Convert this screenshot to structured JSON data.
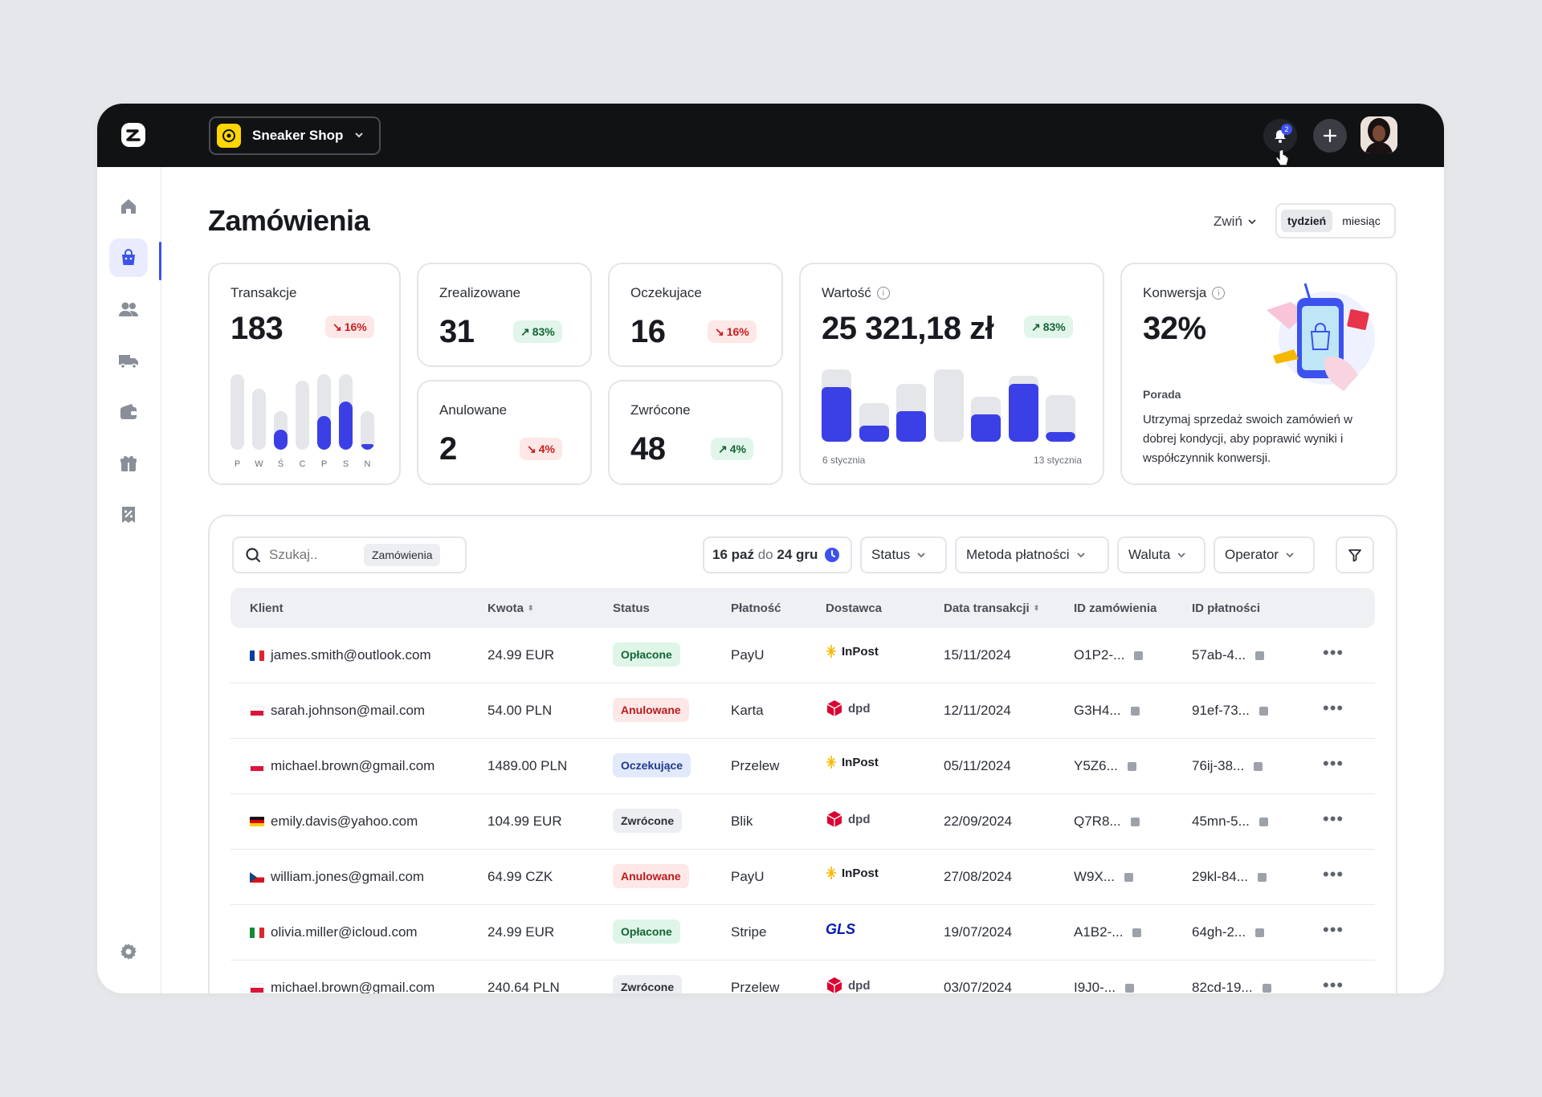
{
  "topbar": {
    "shop_name": "Sneaker Shop",
    "notifications": "2"
  },
  "page": {
    "title": "Zamówienia",
    "collapse": "Zwiń",
    "period_week": "tydzień",
    "period_month": "miesiąc"
  },
  "stats": {
    "transactions": {
      "label": "Transakcje",
      "value": "183",
      "change": "16%",
      "trend": "down",
      "days": [
        "P",
        "W",
        "Ś",
        "C",
        "P",
        "S",
        "N"
      ],
      "day_fill": [
        0,
        0,
        0.52,
        0,
        0.45,
        0.64,
        0.15
      ]
    },
    "completed": {
      "label": "Zrealizowane",
      "value": "31",
      "change": "83%",
      "trend": "up"
    },
    "pending": {
      "label": "Oczekujace",
      "value": "16",
      "change": "16%",
      "trend": "down"
    },
    "cancelled": {
      "label": "Anulowane",
      "value": "2",
      "change": "4%",
      "trend": "down"
    },
    "returned": {
      "label": "Zwrócone",
      "value": "48",
      "change": "4%",
      "trend": "up"
    },
    "value": {
      "label": "Wartość",
      "value": "25 321,18 zł",
      "change": "83%",
      "trend": "up",
      "start": "6 stycznia",
      "end": "13 stycznia",
      "fill": [
        0.76,
        0.41,
        0.53,
        0,
        0.6,
        0.88,
        0.21
      ]
    },
    "conversion": {
      "label": "Konwersja",
      "value": "32%",
      "tip_head": "Porada",
      "tip": "Utrzymaj sprzedaż swoich zamówień w dobrej kondycji, aby poprawić wyniki i współczynnik konwersji."
    }
  },
  "toolbar": {
    "search_placeholder": "Szukaj..",
    "search_scope": "Zamówienia",
    "date_from": "16 paź",
    "date_sep": "do",
    "date_to": "24 gru",
    "status": "Status",
    "payment": "Metoda płatności",
    "currency": "Waluta",
    "operator": "Operator"
  },
  "columns": [
    "Klient",
    "Kwota",
    "Status",
    "Płatność",
    "Dostawca",
    "Data transakcji",
    "ID zamówienia",
    "ID płatności"
  ],
  "orders": [
    {
      "email": "james.smith@outlook.com",
      "flag": "fr",
      "amount": "24.99 EUR",
      "status": "Opłacone",
      "st": "paid",
      "payment": "PayU",
      "carrier": "InPost",
      "date": "15/11/2024",
      "order_id": "O1P2-...",
      "pay_id": "57ab-4..."
    },
    {
      "email": "sarah.johnson@mail.com",
      "flag": "pl",
      "amount": "54.00 PLN",
      "status": "Anulowane",
      "st": "canc",
      "payment": "Karta",
      "carrier": "dpd",
      "date": "12/11/2024",
      "order_id": "G3H4...",
      "pay_id": "91ef-73..."
    },
    {
      "email": "michael.brown@gmail.com",
      "flag": "pl",
      "amount": "1489.00 PLN",
      "status": "Oczekujące",
      "st": "wait",
      "payment": "Przelew",
      "carrier": "InPost",
      "date": "05/11/2024",
      "order_id": "Y5Z6...",
      "pay_id": "76ij-38..."
    },
    {
      "email": "emily.davis@yahoo.com",
      "flag": "de",
      "amount": "104.99 EUR",
      "status": "Zwrócone",
      "st": "ret",
      "payment": "Blik",
      "carrier": "dpd",
      "date": "22/09/2024",
      "order_id": "Q7R8...",
      "pay_id": "45mn-5..."
    },
    {
      "email": "william.jones@gmail.com",
      "flag": "cz",
      "amount": "64.99 CZK",
      "status": "Anulowane",
      "st": "canc",
      "payment": "PayU",
      "carrier": "InPost",
      "date": "27/08/2024",
      "order_id": "W9X...",
      "pay_id": "29kl-84..."
    },
    {
      "email": "olivia.miller@icloud.com",
      "flag": "it",
      "amount": "24.99 EUR",
      "status": "Opłacone",
      "st": "paid",
      "payment": "Stripe",
      "carrier": "GLS",
      "date": "19/07/2024",
      "order_id": "A1B2-...",
      "pay_id": "64gh-2..."
    },
    {
      "email": "michael.brown@gmail.com",
      "flag": "pl",
      "amount": "240.64 PLN",
      "status": "Zwrócone",
      "st": "ret",
      "payment": "Przelew",
      "carrier": "dpd",
      "date": "03/07/2024",
      "order_id": "I9J0-...",
      "pay_id": "82cd-19..."
    }
  ]
}
